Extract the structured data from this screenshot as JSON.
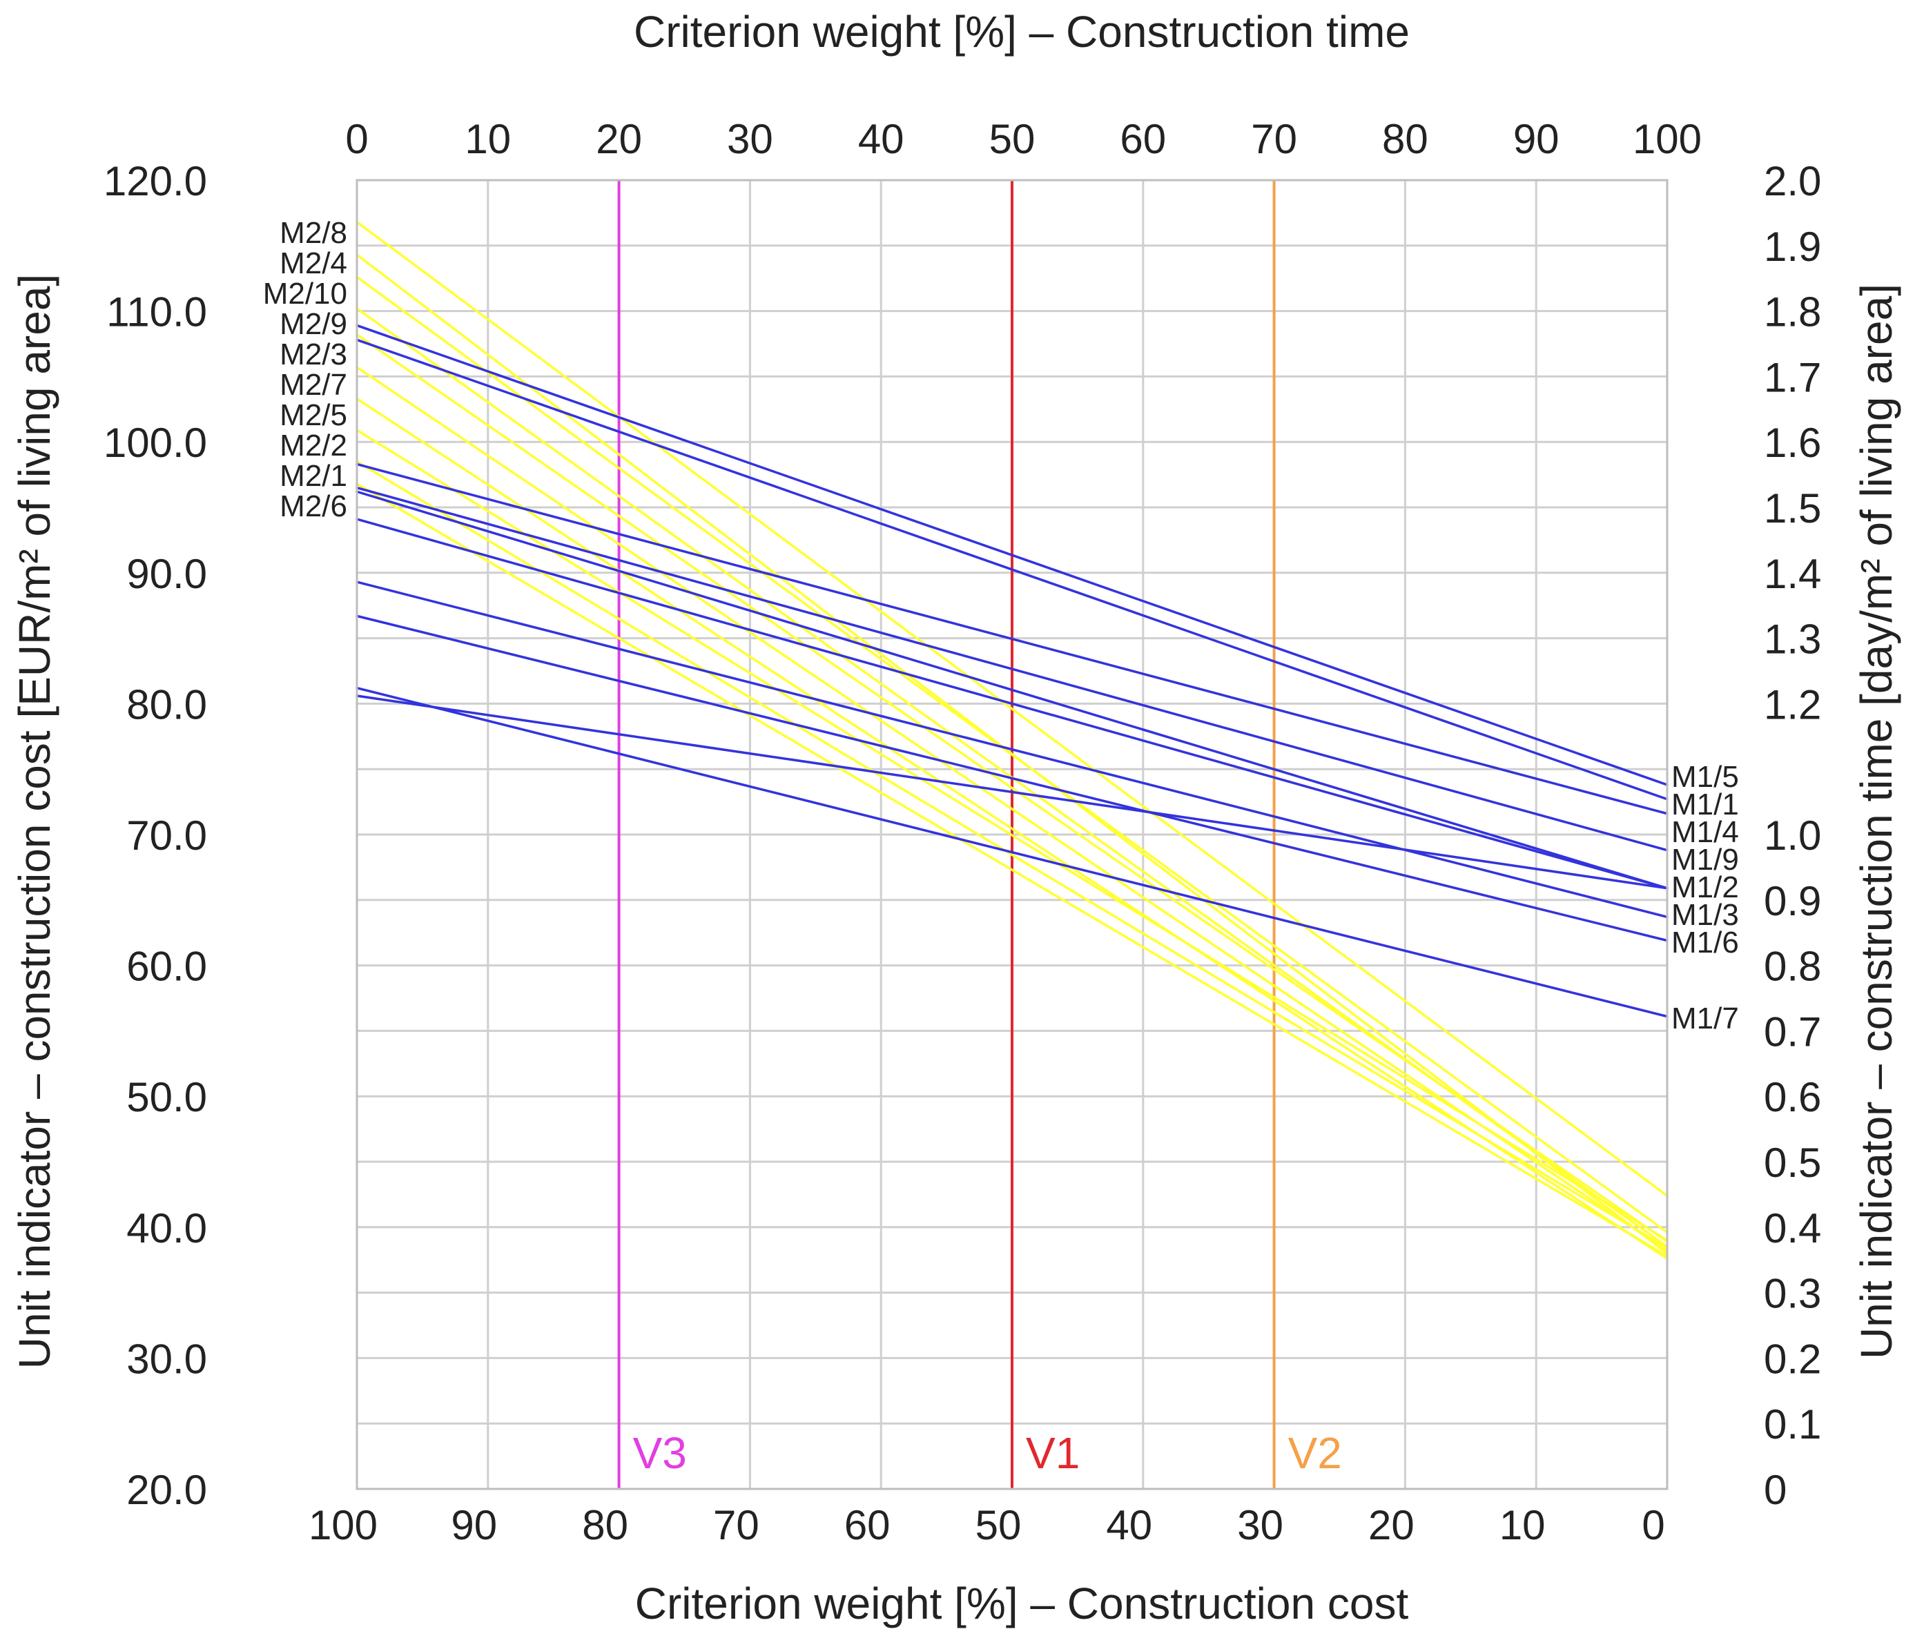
{
  "chart_data": {
    "type": "line",
    "title": "",
    "top_axis": {
      "label": "Criterion weight [%] – Construction time",
      "range": [
        0,
        100
      ],
      "ticks": [
        "0",
        "10",
        "20",
        "30",
        "40",
        "50",
        "60",
        "70",
        "80",
        "90",
        "100"
      ]
    },
    "bottom_axis": {
      "label": "Criterion weight [%] – Construction cost",
      "range": [
        100,
        0
      ],
      "ticks": [
        "100",
        "90",
        "80",
        "70",
        "60",
        "50",
        "40",
        "30",
        "20",
        "10",
        "0"
      ]
    },
    "left_axis": {
      "label": "Unit indicator – construction cost [EUR/m² of living area]",
      "range": [
        20,
        120
      ],
      "ticks": [
        "20.0",
        "30.0",
        "40.0",
        "50.0",
        "60.0",
        "70.0",
        "80.0",
        "90.0",
        "100.0",
        "110.0",
        "120.0"
      ]
    },
    "right_axis": {
      "label": "Unit indicator – construction time [day/m² of living area]",
      "range": [
        0,
        2.0
      ],
      "ticks": [
        "0",
        "0.1",
        "0.2",
        "0.3",
        "0.4",
        "0.5",
        "0.6",
        "0.7",
        "0.8",
        "0.9",
        "1.0",
        "1.2",
        "1.3",
        "1.4",
        "1.5",
        "1.6",
        "1.7",
        "1.8",
        "1.9",
        "2.0"
      ]
    },
    "grid": true,
    "x_unit": "Criterion weight [%] – Construction time",
    "y_unit": "EUR/m² of living area (left axis scale)",
    "vertical_markers": [
      {
        "label": "V3",
        "x": 20,
        "color": "#e23ee2"
      },
      {
        "label": "V1",
        "x": 50,
        "color": "#e0282e"
      },
      {
        "label": "V2",
        "x": 70,
        "color": "#f5a04a"
      }
    ],
    "series_groups": [
      {
        "color": "#ffff33",
        "series": [
          {
            "name": "M2/8",
            "values": [
              116.8,
              42.4
            ]
          },
          {
            "name": "M2/4",
            "values": [
              114.3,
              38.0
            ]
          },
          {
            "name": "M2/10",
            "values": [
              112.6,
              39.6
            ]
          },
          {
            "name": "M2/9",
            "values": [
              110.2,
              38.5
            ]
          },
          {
            "name": "M2/3",
            "values": [
              108.2,
              38.9
            ]
          },
          {
            "name": "M2/7",
            "values": [
              105.7,
              38.2
            ]
          },
          {
            "name": "M2/5",
            "values": [
              103.3,
              37.6
            ]
          },
          {
            "name": "M2/2",
            "values": [
              100.9,
              39.0
            ]
          },
          {
            "name": "M2/1",
            "values": [
              98.5,
              38.4
            ]
          },
          {
            "name": "M2/6",
            "values": [
              96.8,
              37.8
            ]
          }
        ]
      },
      {
        "color": "#3333dd",
        "series": [
          {
            "name": "M1/5",
            "values": [
              108.9,
              73.8
            ]
          },
          {
            "name": "M1/1",
            "values": [
              107.8,
              72.7
            ]
          },
          {
            "name": "M1/4",
            "values": [
              98.3,
              71.6
            ]
          },
          {
            "name": "M1/9",
            "values": [
              96.5,
              68.8
            ]
          },
          {
            "name": "M1/2",
            "values": [
              94.1,
              65.9
            ]
          },
          {
            "name": "M1/3",
            "values": [
              89.3,
              63.7
            ]
          },
          {
            "name": "M1/6",
            "values": [
              86.7,
              61.9
            ]
          },
          {
            "name": "M1/7",
            "values": [
              81.2,
              56.1
            ]
          },
          {
            "name": "",
            "values": [
              96.2,
              65.9
            ]
          },
          {
            "name": "",
            "values": [
              80.6,
              65.9
            ]
          }
        ]
      }
    ]
  }
}
